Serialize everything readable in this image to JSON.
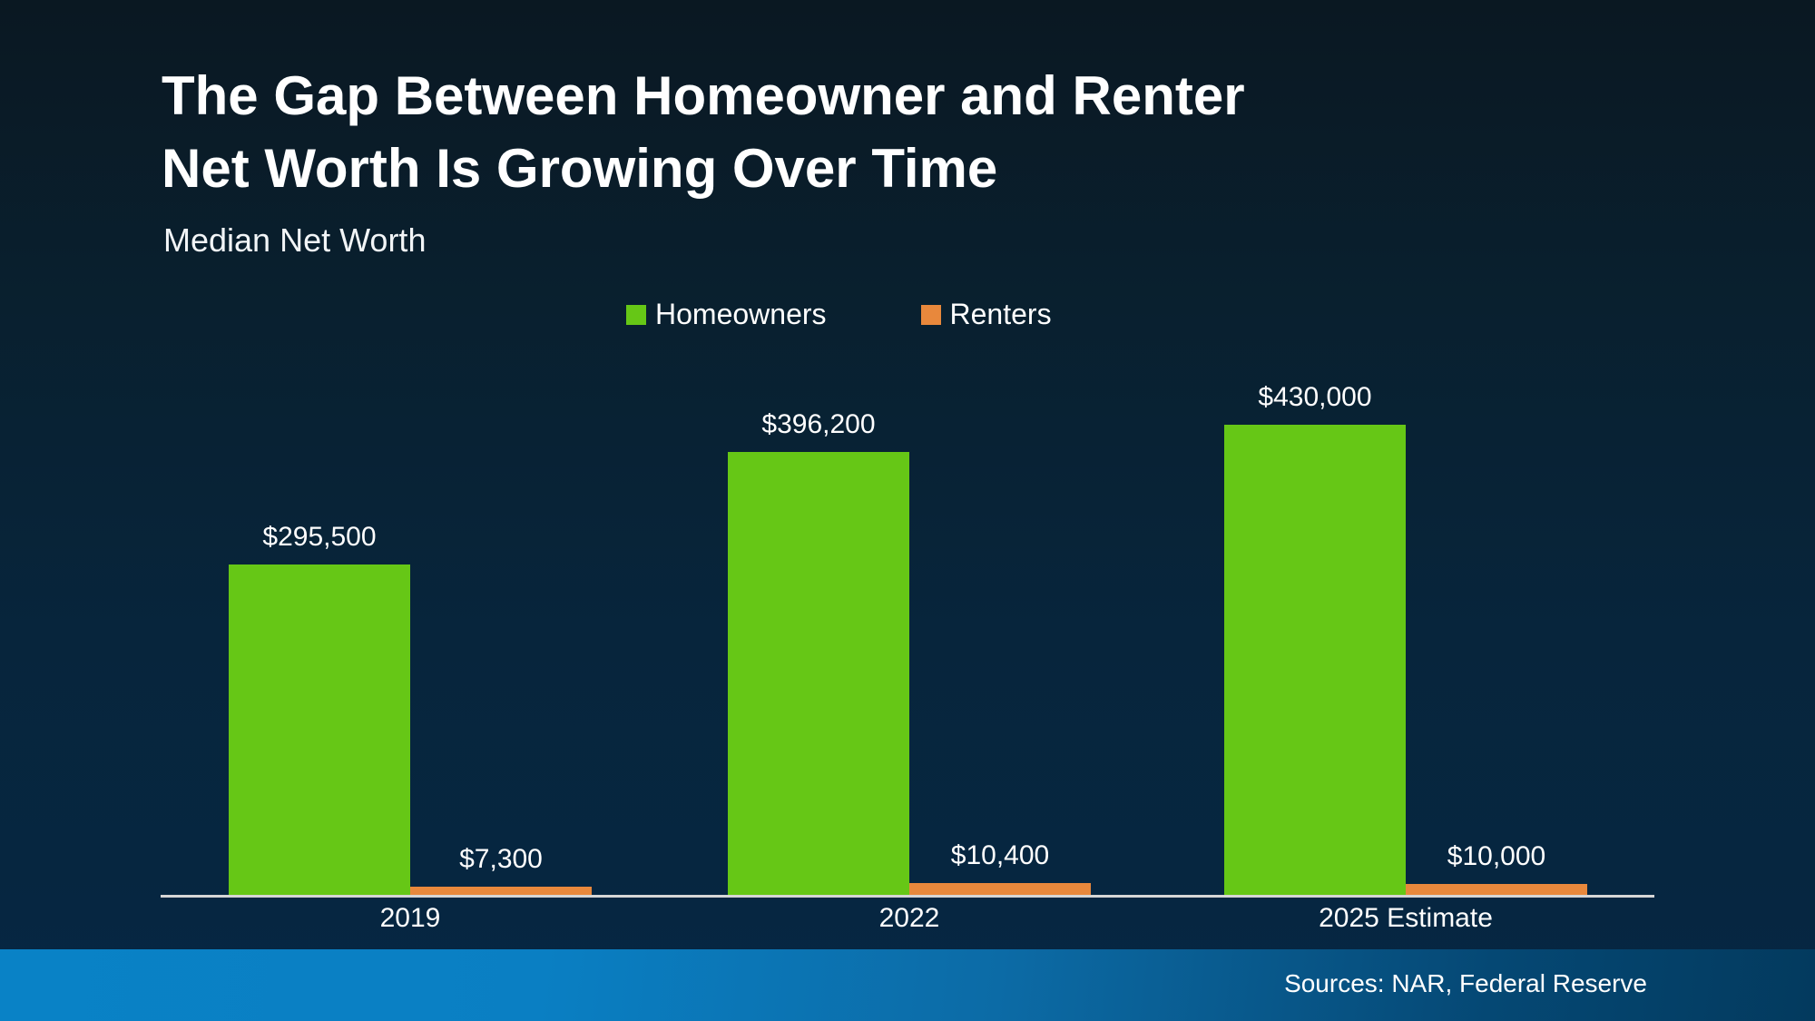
{
  "slide": {
    "title_line1": "The Gap Between Homeowner and Renter",
    "title_line2": "Net Worth Is Growing Over Time",
    "subtitle": "Median Net Worth",
    "source_note": "Sources: NAR, Federal Reserve"
  },
  "chart_data": {
    "type": "bar",
    "title": "Median Net Worth",
    "categories": [
      "2019",
      "2022",
      "2025 Estimate"
    ],
    "series": [
      {
        "name": "Homeowners",
        "color": "#66c716",
        "values": [
          295500,
          396200,
          430000
        ],
        "labels": [
          "$295,500",
          "$396,200",
          "$430,000"
        ]
      },
      {
        "name": "Renters",
        "color": "#e8883c",
        "values": [
          7300,
          10400,
          10000
        ],
        "labels": [
          "$7,300",
          "$10,400",
          "$10,000"
        ]
      }
    ],
    "ylim": [
      0,
      430000
    ],
    "grid": false,
    "legend_position": "top-center",
    "value_labels": true,
    "y_axis_visible": false
  },
  "colors": {
    "background_top": "#0a1822",
    "background_bottom": "#062743",
    "homeowners": "#66c716",
    "renters": "#e8883c",
    "axis_line": "#d6d6d6",
    "text": "#ffffff",
    "footer_left": "#0982c6",
    "footer_right": "#033a5e"
  }
}
